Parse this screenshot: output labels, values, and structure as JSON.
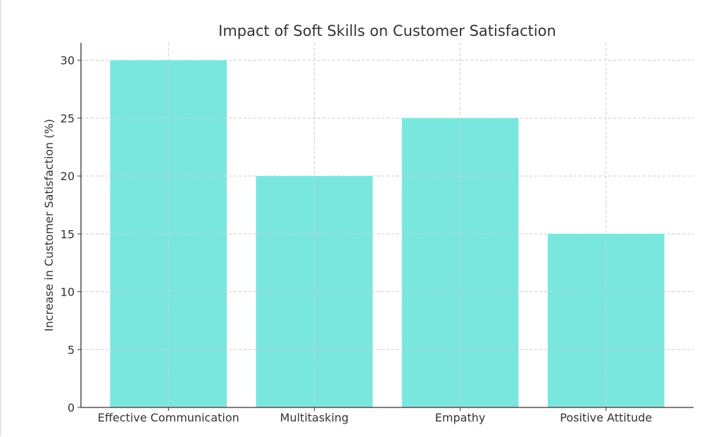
{
  "chart_data": {
    "type": "bar",
    "title": "Impact of Soft Skills on Customer Satisfaction",
    "xlabel": "",
    "ylabel": "Increase in Customer Satisfaction (%)",
    "categories": [
      "Effective Communication",
      "Multitasking",
      "Empathy",
      "Positive Attitude"
    ],
    "values": [
      30,
      20,
      25,
      15
    ],
    "ylim": [
      0,
      31.5
    ],
    "xlim": [
      -0.6,
      3.6
    ],
    "yticks": [
      0,
      5,
      10,
      15,
      20,
      25,
      30
    ],
    "grid": true,
    "bar_color": "#7AE7DF"
  }
}
